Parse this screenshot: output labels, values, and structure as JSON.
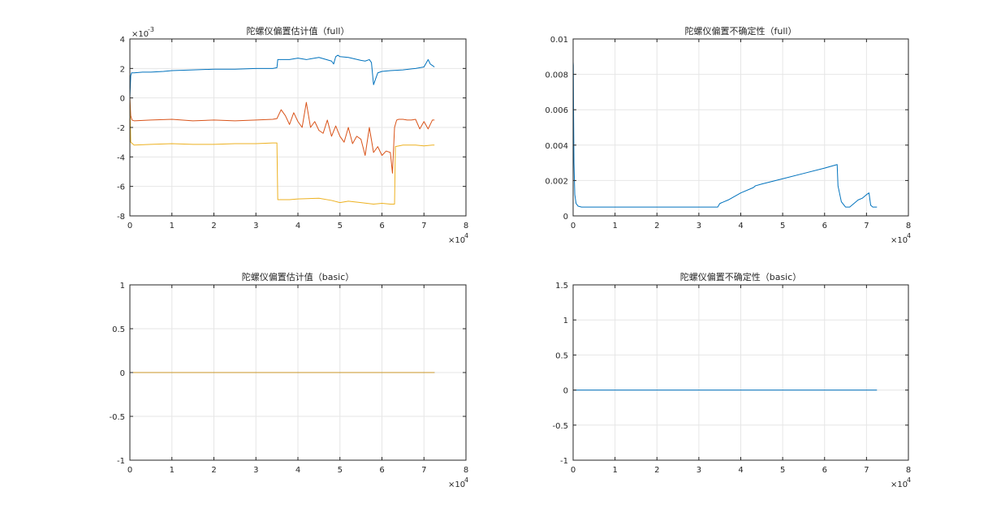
{
  "chart_data": [
    {
      "type": "line",
      "title": "陀螺仪偏置估计值（full）",
      "xlim": [
        0,
        80000
      ],
      "ylim": [
        -8,
        4
      ],
      "x_exponent_label": "×10",
      "x_exponent_power": "4",
      "y_exponent_label": "×10",
      "y_exponent_power": "-3",
      "xticks": [
        0,
        1,
        2,
        3,
        4,
        5,
        6,
        7,
        8
      ],
      "xtick_labels": [
        "0",
        "1",
        "2",
        "3",
        "4",
        "5",
        "6",
        "7",
        "8"
      ],
      "yticks": [
        -8,
        -6,
        -4,
        -2,
        0,
        2,
        4
      ],
      "ytick_labels": [
        "-8",
        "-6",
        "-4",
        "-2",
        "0",
        "2",
        "4"
      ],
      "grid": true,
      "series": [
        {
          "color": "#0072BD",
          "x": [
            0,
            200,
            400,
            1000,
            3000,
            5000,
            8000,
            10000,
            15000,
            20000,
            25000,
            30000,
            34000,
            35000,
            35200,
            38000,
            40000,
            42000,
            45000,
            48000,
            48500,
            49000,
            49500,
            50000,
            52000,
            55000,
            56000,
            57000,
            57500,
            58000,
            59000,
            60000,
            62000,
            65000,
            68000,
            70000,
            71000,
            71500,
            72000,
            72500
          ],
          "y": [
            0,
            1.5,
            1.7,
            1.7,
            1.75,
            1.75,
            1.8,
            1.85,
            1.9,
            1.95,
            1.95,
            2.0,
            2.0,
            2.05,
            2.6,
            2.6,
            2.7,
            2.6,
            2.75,
            2.5,
            2.3,
            2.8,
            2.9,
            2.8,
            2.75,
            2.55,
            2.5,
            2.6,
            2.4,
            0.9,
            1.7,
            1.8,
            1.85,
            1.9,
            2.0,
            2.1,
            2.6,
            2.3,
            2.2,
            2.1
          ]
        },
        {
          "color": "#D95319",
          "x": [
            0,
            200,
            500,
            1000,
            5000,
            10000,
            15000,
            20000,
            25000,
            30000,
            34000,
            35000,
            36000,
            37000,
            38000,
            39000,
            40000,
            41000,
            42000,
            43000,
            44000,
            45000,
            46000,
            47000,
            48000,
            49000,
            50000,
            51000,
            52000,
            53000,
            54000,
            55000,
            56000,
            57000,
            58000,
            59000,
            60000,
            61000,
            62000,
            62500,
            63000,
            63500,
            64000,
            65000,
            66000,
            67000,
            68000,
            69000,
            70000,
            71000,
            72000,
            72500
          ],
          "y": [
            0,
            -1.2,
            -1.5,
            -1.55,
            -1.5,
            -1.45,
            -1.55,
            -1.5,
            -1.55,
            -1.5,
            -1.45,
            -1.4,
            -0.8,
            -1.2,
            -1.8,
            -1.0,
            -1.6,
            -2.0,
            -0.3,
            -2.0,
            -1.6,
            -2.2,
            -2.4,
            -1.5,
            -2.6,
            -1.9,
            -2.6,
            -3.0,
            -2.0,
            -3.1,
            -2.6,
            -2.8,
            -3.9,
            -2.0,
            -3.7,
            -3.3,
            -3.9,
            -3.6,
            -3.7,
            -5.1,
            -2.0,
            -1.5,
            -1.45,
            -1.45,
            -1.5,
            -1.5,
            -1.45,
            -2.1,
            -1.6,
            -2.1,
            -1.5,
            -1.5
          ]
        },
        {
          "color": "#EDB120",
          "x": [
            0,
            200,
            1000,
            5000,
            10000,
            15000,
            20000,
            25000,
            30000,
            34000,
            35000,
            35200,
            38000,
            40000,
            45000,
            48000,
            50000,
            52000,
            55000,
            58000,
            60000,
            62000,
            63000,
            63200,
            65000,
            68000,
            70000,
            72000,
            72500
          ],
          "y": [
            0,
            -3.0,
            -3.2,
            -3.15,
            -3.1,
            -3.15,
            -3.15,
            -3.1,
            -3.1,
            -3.05,
            -3.05,
            -6.9,
            -6.9,
            -6.85,
            -6.8,
            -6.95,
            -7.1,
            -7.0,
            -7.1,
            -7.2,
            -7.15,
            -7.2,
            -7.2,
            -3.3,
            -3.2,
            -3.2,
            -3.25,
            -3.2,
            -3.2
          ]
        }
      ]
    },
    {
      "type": "line",
      "title": "陀螺仪偏置不确定性（full）",
      "xlim": [
        0,
        80000
      ],
      "ylim": [
        0,
        0.01
      ],
      "x_exponent_label": "×10",
      "x_exponent_power": "4",
      "xticks": [
        0,
        1,
        2,
        3,
        4,
        5,
        6,
        7,
        8
      ],
      "xtick_labels": [
        "0",
        "1",
        "2",
        "3",
        "4",
        "5",
        "6",
        "7",
        "8"
      ],
      "yticks": [
        0,
        0.002,
        0.004,
        0.006,
        0.008,
        0.01
      ],
      "ytick_labels": [
        "0",
        "0.002",
        "0.004",
        "0.006",
        "0.008",
        "0.01"
      ],
      "grid": true,
      "series": [
        {
          "color": "#0072BD",
          "x": [
            0,
            50,
            100,
            200,
            400,
            700,
            1200,
            2000,
            5000,
            10000,
            20000,
            30000,
            34000,
            34500,
            35000,
            37000,
            40000,
            43000,
            43500,
            45000,
            50000,
            55000,
            60000,
            63000,
            63200,
            64000,
            65000,
            66000,
            67000,
            68000,
            69000,
            70000,
            70600,
            71000,
            71500,
            72000,
            72500
          ],
          "y": [
            0.0087,
            0.0085,
            0.006,
            0.003,
            0.0012,
            0.0007,
            0.00055,
            0.0005,
            0.0005,
            0.0005,
            0.0005,
            0.0005,
            0.0005,
            0.0005,
            0.0007,
            0.0009,
            0.0013,
            0.0016,
            0.0017,
            0.0018,
            0.0021,
            0.0024,
            0.0027,
            0.0029,
            0.0017,
            0.0008,
            0.0005,
            0.0005,
            0.0007,
            0.0009,
            0.001,
            0.0012,
            0.0013,
            0.0006,
            0.0005,
            0.0005,
            0.0005
          ]
        }
      ]
    },
    {
      "type": "line",
      "title": "陀螺仪偏置估计值（basic）",
      "xlim": [
        0,
        80000
      ],
      "ylim": [
        -1,
        1
      ],
      "x_exponent_label": "×10",
      "x_exponent_power": "4",
      "xticks": [
        0,
        1,
        2,
        3,
        4,
        5,
        6,
        7,
        8
      ],
      "xtick_labels": [
        "0",
        "1",
        "2",
        "3",
        "4",
        "5",
        "6",
        "7",
        "8"
      ],
      "yticks": [
        -1,
        -0.5,
        0,
        0.5,
        1
      ],
      "ytick_labels": [
        "-1",
        "-0.5",
        "0",
        "0.5",
        "1"
      ],
      "grid": true,
      "series": [
        {
          "color": "#0072BD",
          "x": [
            0,
            72500
          ],
          "y": [
            0,
            0
          ]
        },
        {
          "color": "#D95319",
          "x": [
            0,
            72500
          ],
          "y": [
            0,
            0
          ]
        },
        {
          "color": "#C89526",
          "x": [
            0,
            72500
          ],
          "y": [
            0,
            0
          ]
        }
      ]
    },
    {
      "type": "line",
      "title": "陀螺仪偏置不确定性（basic）",
      "xlim": [
        0,
        80000
      ],
      "ylim": [
        -1,
        1.5
      ],
      "x_exponent_label": "×10",
      "x_exponent_power": "4",
      "xticks": [
        0,
        1,
        2,
        3,
        4,
        5,
        6,
        7,
        8
      ],
      "xtick_labels": [
        "0",
        "1",
        "2",
        "3",
        "4",
        "5",
        "6",
        "7",
        "8"
      ],
      "yticks": [
        -1,
        -0.5,
        0,
        0.5,
        1,
        1.5
      ],
      "ytick_labels": [
        "-1",
        "-0.5",
        "0",
        "0.5",
        "1",
        "1.5"
      ],
      "grid": true,
      "series": [
        {
          "color": "#0072BD",
          "x": [
            0,
            72500
          ],
          "y": [
            0,
            0
          ]
        }
      ]
    }
  ]
}
